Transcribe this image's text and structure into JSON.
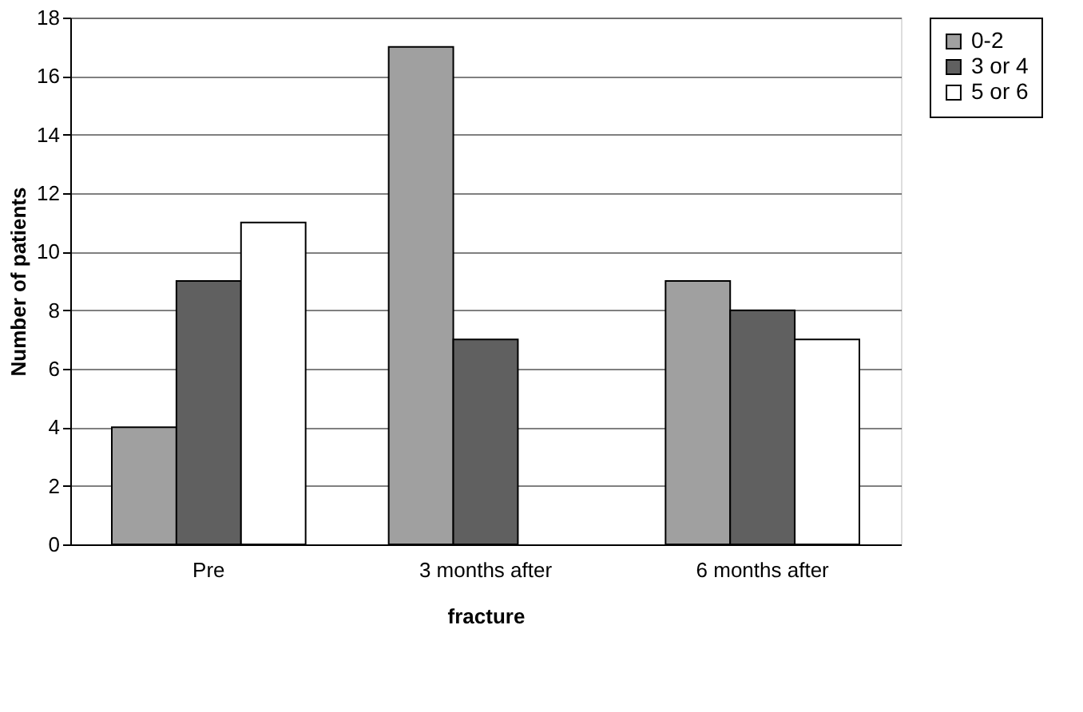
{
  "chart_data": {
    "type": "bar",
    "xlabel": "fracture",
    "ylabel": "Number of patients",
    "categories": [
      "Pre",
      "3 months after",
      "6 months after"
    ],
    "series": [
      {
        "name": "0-2",
        "color": "#a0a0a0",
        "values": [
          4,
          17,
          9
        ]
      },
      {
        "name": "3 or 4",
        "color": "#606060",
        "values": [
          9,
          7,
          8
        ]
      },
      {
        "name": "5 or 6",
        "color": "#ffffff",
        "values": [
          11,
          null,
          7
        ]
      }
    ],
    "ylim": [
      0,
      18
    ],
    "yticks": [
      0,
      2,
      4,
      6,
      8,
      10,
      12,
      14,
      16,
      18
    ],
    "grid": "y",
    "legend": "right"
  }
}
